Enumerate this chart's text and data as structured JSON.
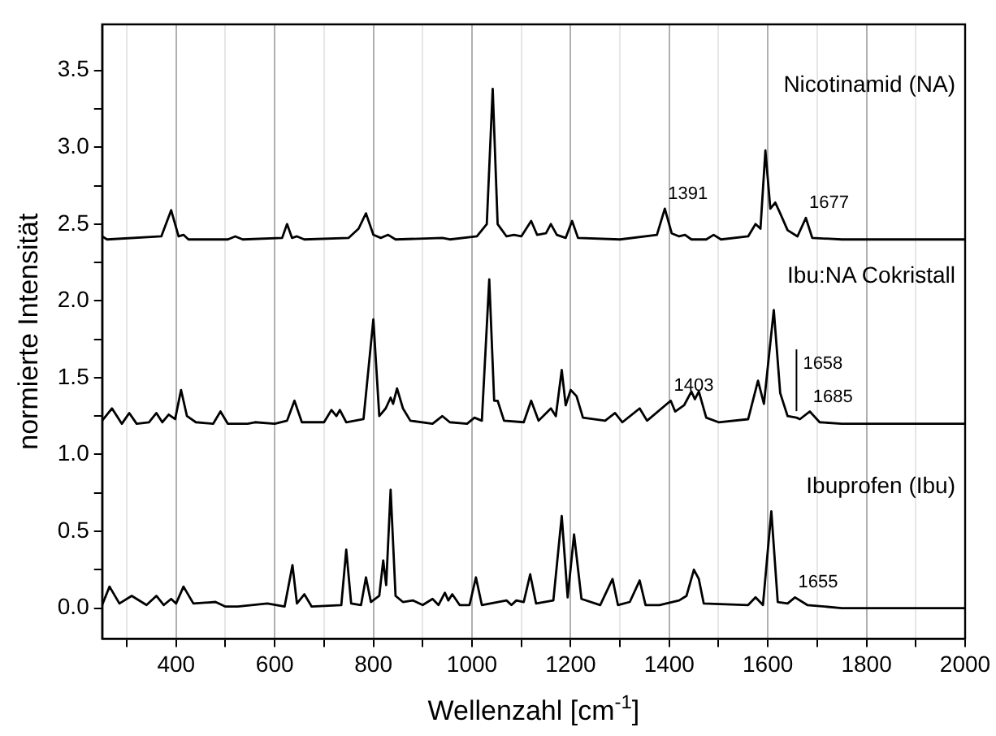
{
  "chart_data": {
    "type": "line",
    "xlabel": "Wellenzahl [cm$^{-1}$]",
    "ylabel": "normierte Intensität",
    "xlim": [
      250,
      2000
    ],
    "ylim": [
      -0.2,
      3.8
    ],
    "xticks": [
      {
        "value": 300,
        "label": null
      },
      400,
      {
        "value": 500,
        "label": null
      },
      600,
      {
        "value": 700,
        "label": null
      },
      800,
      {
        "value": 900,
        "label": null
      },
      1000,
      {
        "value": 1100,
        "label": null
      },
      1200,
      {
        "value": 1300,
        "label": null
      },
      1400,
      {
        "value": 1500,
        "label": null
      },
      1600,
      {
        "value": 1700,
        "label": null
      },
      1800,
      {
        "value": 1900,
        "label": null
      },
      2000
    ],
    "yticks": [
      {
        "value": 0,
        "label": "0.0"
      },
      {
        "value": 0.25,
        "label": null
      },
      0.5,
      {
        "value": 0.75,
        "label": null
      },
      {
        "value": 1,
        "label": "1.0"
      },
      {
        "value": 1.25,
        "label": null
      },
      1.5,
      {
        "value": 1.75,
        "label": null
      },
      {
        "value": 2,
        "label": "2.0"
      },
      {
        "value": 2.25,
        "label": null
      },
      2.5,
      {
        "value": 2.75,
        "label": null
      },
      {
        "value": 3,
        "label": "3.0"
      },
      {
        "value": 3.25,
        "label": null
      },
      3.5
    ],
    "grid": "x",
    "legend": false,
    "marker": "none",
    "line_style": "solid",
    "series": [
      {
        "name": "Nicotinamid (NA)",
        "color": "#000000",
        "x": [
          250,
          260,
          370,
          390,
          405,
          415,
          425,
          505,
          520,
          535,
          615,
          625,
          635,
          645,
          660,
          750,
          770,
          785,
          800,
          815,
          830,
          845,
          940,
          955,
          1010,
          1030,
          1042,
          1052,
          1070,
          1085,
          1100,
          1120,
          1132,
          1150,
          1160,
          1172,
          1190,
          1203,
          1215,
          1300,
          1375,
          1391,
          1405,
          1420,
          1432,
          1445,
          1475,
          1490,
          1505,
          1560,
          1575,
          1585,
          1595,
          1605,
          1615,
          1625,
          1640,
          1660,
          1677,
          1690,
          1750,
          2000
        ],
        "values": [
          2.42,
          2.4,
          2.42,
          2.59,
          2.42,
          2.43,
          2.4,
          2.4,
          2.42,
          2.4,
          2.41,
          2.5,
          2.41,
          2.42,
          2.4,
          2.41,
          2.47,
          2.57,
          2.43,
          2.41,
          2.43,
          2.4,
          2.41,
          2.4,
          2.42,
          2.5,
          3.38,
          2.5,
          2.42,
          2.43,
          2.42,
          2.52,
          2.43,
          2.44,
          2.5,
          2.43,
          2.41,
          2.52,
          2.41,
          2.4,
          2.43,
          2.6,
          2.44,
          2.42,
          2.43,
          2.4,
          2.4,
          2.43,
          2.4,
          2.42,
          2.5,
          2.47,
          2.98,
          2.6,
          2.64,
          2.57,
          2.46,
          2.42,
          2.54,
          2.41,
          2.4,
          2.4
        ]
      },
      {
        "name": "Ibu:NA Cokristall",
        "color": "#000000",
        "x": [
          250,
          270,
          290,
          305,
          320,
          345,
          360,
          372,
          385,
          398,
          410,
          422,
          440,
          475,
          490,
          505,
          545,
          560,
          600,
          625,
          640,
          655,
          700,
          715,
          725,
          732,
          745,
          780,
          800,
          812,
          825,
          835,
          840,
          848,
          860,
          875,
          920,
          940,
          955,
          990,
          1005,
          1020,
          1035,
          1045,
          1052,
          1065,
          1105,
          1120,
          1135,
          1160,
          1170,
          1182,
          1190,
          1200,
          1212,
          1225,
          1270,
          1290,
          1305,
          1340,
          1355,
          1403,
          1412,
          1430,
          1445,
          1452,
          1460,
          1475,
          1500,
          1560,
          1580,
          1592,
          1612,
          1625,
          1640,
          1658,
          1665,
          1685,
          1705,
          1750,
          2000
        ],
        "values": [
          1.22,
          1.3,
          1.2,
          1.27,
          1.2,
          1.21,
          1.27,
          1.21,
          1.26,
          1.23,
          1.42,
          1.25,
          1.21,
          1.2,
          1.28,
          1.2,
          1.2,
          1.21,
          1.2,
          1.22,
          1.35,
          1.21,
          1.21,
          1.29,
          1.25,
          1.29,
          1.21,
          1.23,
          1.88,
          1.25,
          1.3,
          1.37,
          1.33,
          1.43,
          1.3,
          1.22,
          1.2,
          1.25,
          1.21,
          1.2,
          1.24,
          1.22,
          2.14,
          1.35,
          1.35,
          1.22,
          1.21,
          1.35,
          1.22,
          1.3,
          1.25,
          1.55,
          1.32,
          1.42,
          1.38,
          1.24,
          1.22,
          1.27,
          1.21,
          1.3,
          1.22,
          1.35,
          1.28,
          1.32,
          1.41,
          1.36,
          1.41,
          1.24,
          1.21,
          1.23,
          1.48,
          1.33,
          1.94,
          1.4,
          1.25,
          1.24,
          1.23,
          1.28,
          1.21,
          1.2,
          1.2
        ]
      },
      {
        "name": "Ibuprofen (Ibu)",
        "color": "#000000",
        "x": [
          250,
          265,
          285,
          310,
          340,
          360,
          375,
          390,
          400,
          415,
          435,
          480,
          500,
          525,
          585,
          620,
          636,
          645,
          660,
          675,
          735,
          745,
          755,
          775,
          785,
          795,
          812,
          820,
          826,
          835,
          845,
          860,
          880,
          900,
          920,
          932,
          945,
          952,
          960,
          975,
          995,
          1008,
          1020,
          1070,
          1080,
          1090,
          1105,
          1118,
          1130,
          1165,
          1182,
          1194,
          1207,
          1222,
          1260,
          1285,
          1296,
          1320,
          1340,
          1352,
          1380,
          1420,
          1435,
          1450,
          1460,
          1470,
          1560,
          1575,
          1590,
          1607,
          1620,
          1640,
          1655,
          1680,
          1750,
          2000
        ],
        "values": [
          0.02,
          0.14,
          0.03,
          0.08,
          0.02,
          0.08,
          0.02,
          0.06,
          0.03,
          0.14,
          0.03,
          0.04,
          0.01,
          0.01,
          0.03,
          0.01,
          0.28,
          0.03,
          0.09,
          0.01,
          0.02,
          0.38,
          0.03,
          0.02,
          0.2,
          0.04,
          0.08,
          0.31,
          0.15,
          0.77,
          0.08,
          0.04,
          0.05,
          0.02,
          0.06,
          0.02,
          0.1,
          0.05,
          0.09,
          0.02,
          0.02,
          0.2,
          0.02,
          0.05,
          0.02,
          0.05,
          0.04,
          0.22,
          0.03,
          0.05,
          0.6,
          0.07,
          0.48,
          0.06,
          0.02,
          0.19,
          0.02,
          0.04,
          0.18,
          0.02,
          0.02,
          0.05,
          0.08,
          0.25,
          0.19,
          0.03,
          0.02,
          0.07,
          0.02,
          0.63,
          0.04,
          0.03,
          0.07,
          0.02,
          0,
          0
        ]
      }
    ],
    "annotations": [
      {
        "text": "1391",
        "x": 1391,
        "y": 2.6
      },
      {
        "text": "1677",
        "x": 1677,
        "y": 2.54
      },
      {
        "text": "1403",
        "x": 1403,
        "y": 1.35
      },
      {
        "text": "1685",
        "x": 1685,
        "y": 1.28
      },
      {
        "text": "1658",
        "x": 1658,
        "y": 1.24
      },
      {
        "text": "1655",
        "x": 1655,
        "y": 0.07
      }
    ]
  }
}
